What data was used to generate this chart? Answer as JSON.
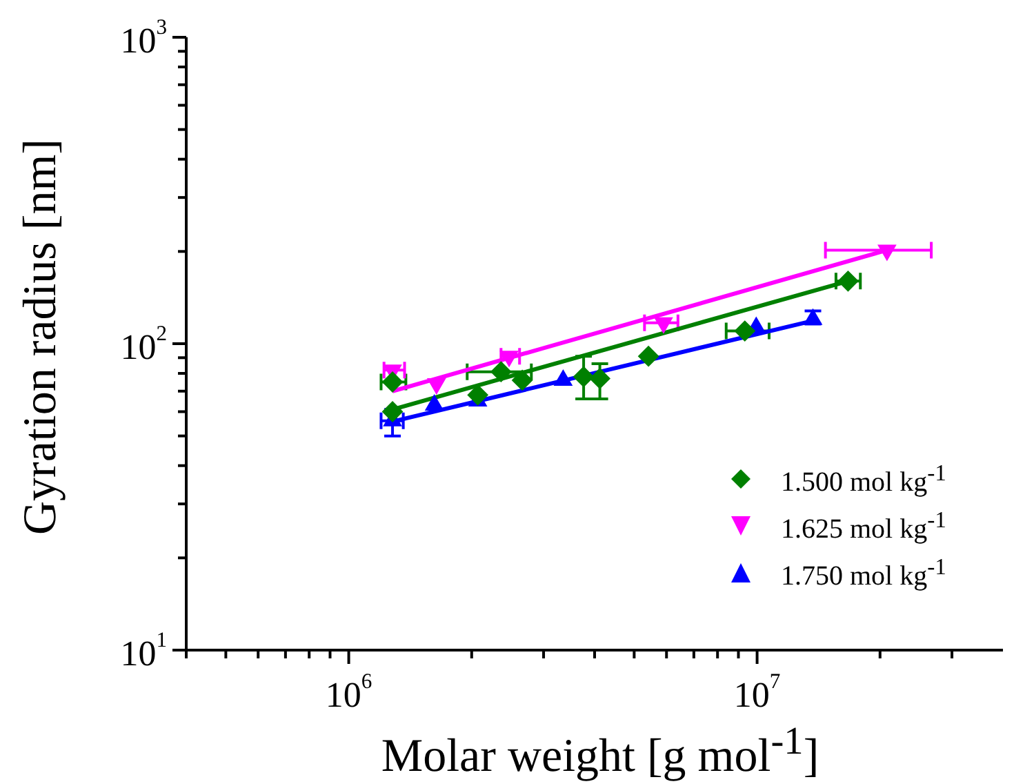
{
  "chart_data": {
    "type": "scatter",
    "xlabel": "Molar weight [g mol$^{-1}$]",
    "ylabel": "Gyration radius [nm]",
    "log": "xy",
    "grid": false,
    "legend": "bottom right",
    "xlim": [
      400000,
      40000000
    ],
    "ylim": [
      10,
      1000
    ],
    "xticks": [
      {
        "value": 400000,
        "label": null
      },
      {
        "value": 500000,
        "label": null
      },
      {
        "value": 600000,
        "label": null
      },
      {
        "value": 700000,
        "label": null
      },
      {
        "value": 800000,
        "label": null
      },
      {
        "value": 900000,
        "label": null
      },
      {
        "value": 1000000,
        "label": "10$^{6}$"
      },
      {
        "value": 2000000,
        "label": null
      },
      {
        "value": 3000000,
        "label": null
      },
      {
        "value": 4000000,
        "label": null
      },
      {
        "value": 5000000,
        "label": null
      },
      {
        "value": 6000000,
        "label": null
      },
      {
        "value": 7000000,
        "label": null
      },
      {
        "value": 8000000,
        "label": null
      },
      {
        "value": 9000000,
        "label": null
      },
      {
        "value": 10000000,
        "label": "10$^{7}$"
      },
      {
        "value": 20000000,
        "label": null
      },
      {
        "value": 30000000,
        "label": null
      }
    ],
    "yticks": [
      {
        "value": 10,
        "label": "10$^{1}$"
      },
      {
        "value": 20,
        "label": null
      },
      {
        "value": 30,
        "label": null
      },
      {
        "value": 40,
        "label": null
      },
      {
        "value": 50,
        "label": null
      },
      {
        "value": 60,
        "label": null
      },
      {
        "value": 70,
        "label": null
      },
      {
        "value": 80,
        "label": null
      },
      {
        "value": 90,
        "label": null
      },
      {
        "value": 100,
        "label": "10$^{2}$"
      },
      {
        "value": 200,
        "label": null
      },
      {
        "value": 300,
        "label": null
      },
      {
        "value": 400,
        "label": null
      },
      {
        "value": 500,
        "label": null
      },
      {
        "value": 600,
        "label": null
      },
      {
        "value": 700,
        "label": null
      },
      {
        "value": 800,
        "label": null
      },
      {
        "value": 900,
        "label": null
      },
      {
        "value": 1000,
        "label": "10$^{3}$"
      }
    ],
    "series": [
      {
        "name": "1.500 mol kg$^{-1}$",
        "color": "#008000",
        "marker": "diamond",
        "x": [
          1280000,
          1280000,
          2070000,
          2360000,
          2660000,
          3760000,
          4120000,
          5420000,
          9330000,
          16700000
        ],
        "values": [
          75,
          60,
          68,
          81,
          76,
          78,
          77,
          91,
          110,
          160
        ],
        "errors": [
          null,
          null,
          null,
          null,
          null,
          [
            66,
            91
          ],
          [
            66,
            86
          ],
          null,
          null,
          null
        ],
        "xerrors": [
          [
            1200000,
            1380000
          ],
          null,
          null,
          [
            1950000,
            2800000
          ],
          null,
          null,
          null,
          null,
          [
            8400000,
            10700000
          ],
          [
            15600000,
            17900000
          ]
        ]
      },
      {
        "name": "1.625 mol kg$^{-1}$",
        "color": "#ff00ff",
        "marker": "triangle_down",
        "x": [
          1280000,
          1640000,
          2470000,
          5900000,
          20800000
        ],
        "values": [
          82,
          74,
          91,
          117,
          202
        ],
        "xerrors": [
          [
            1220000,
            1370000
          ],
          null,
          [
            2360000,
            2620000
          ],
          [
            5300000,
            6400000
          ],
          [
            14700000,
            26700000
          ]
        ]
      },
      {
        "name": "1.750 mol kg$^{-1}$",
        "color": "#0000ff",
        "marker": "triangle",
        "x": [
          1280000,
          1620000,
          2070000,
          3350000,
          9950000,
          13700000
        ],
        "values": [
          56,
          63,
          65,
          76,
          113,
          120
        ],
        "errors": [
          [
            50,
            61
          ],
          null,
          null,
          null,
          null,
          [
            116,
            128
          ]
        ],
        "xerrors": [
          [
            1200000,
            1360000
          ],
          null,
          null,
          null,
          null,
          null
        ]
      },
      {
        "type": "line",
        "color": "#008000",
        "x": [
          1280000,
          16700000
        ],
        "values": [
          61,
          160
        ]
      },
      {
        "type": "line",
        "color": "#ff00ff",
        "x": [
          1280000,
          20800000
        ],
        "values": [
          70,
          202
        ]
      },
      {
        "type": "line",
        "color": "#0000ff",
        "x": [
          1300000,
          13400000
        ],
        "values": [
          56,
          118
        ]
      }
    ]
  }
}
